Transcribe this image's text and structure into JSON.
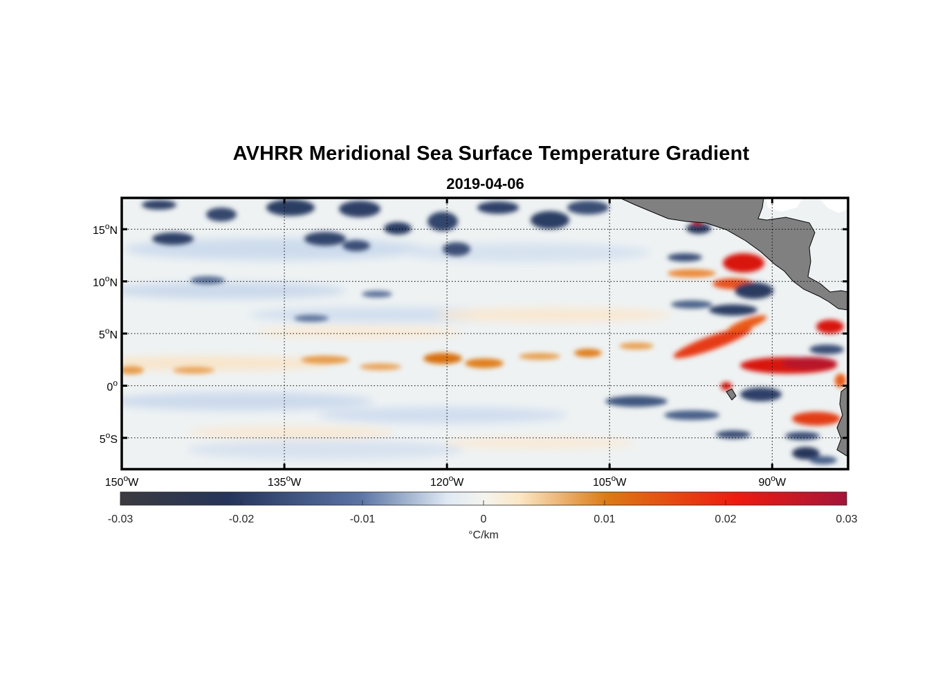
{
  "title": "AVHRR Meridional Sea Surface Temperature Gradient",
  "subtitle": "2019-04-06",
  "map": {
    "lon_range": [
      -150,
      -83
    ],
    "lat_range": [
      -8,
      18
    ],
    "lon_ticks": [
      {
        "value": -150,
        "label": "150",
        "deg": "o",
        "hemi": "W"
      },
      {
        "value": -135,
        "label": "135",
        "deg": "o",
        "hemi": "W"
      },
      {
        "value": -120,
        "label": "120",
        "deg": "o",
        "hemi": "W"
      },
      {
        "value": -105,
        "label": "105",
        "deg": "o",
        "hemi": "W"
      },
      {
        "value": -90,
        "label": "90",
        "deg": "o",
        "hemi": "W"
      }
    ],
    "lat_ticks": [
      {
        "value": 15,
        "label": "15",
        "deg": "o",
        "hemi": "N"
      },
      {
        "value": 10,
        "label": "10",
        "deg": "o",
        "hemi": "N"
      },
      {
        "value": 5,
        "label": "5",
        "deg": "o",
        "hemi": "N"
      },
      {
        "value": 0,
        "label": "0",
        "deg": "o",
        "hemi": ""
      },
      {
        "value": -5,
        "label": "5",
        "deg": "o",
        "hemi": "S"
      }
    ],
    "grid": true,
    "land_color": "#808080"
  },
  "colorbar": {
    "range": [
      -0.03,
      0.03
    ],
    "ticks": [
      {
        "value": -0.03,
        "label": "-0.03"
      },
      {
        "value": -0.02,
        "label": "-0.02"
      },
      {
        "value": -0.01,
        "label": "-0.01"
      },
      {
        "value": 0,
        "label": "0"
      },
      {
        "value": 0.01,
        "label": "0.01"
      },
      {
        "value": 0.02,
        "label": "0.02"
      },
      {
        "value": 0.03,
        "label": "0.03"
      }
    ],
    "unit": "°C/km",
    "colors": [
      "#3b3b3f",
      "#25345a",
      "#5a74a4",
      "#dfe9f4",
      "#fbe7c5",
      "#db7a16",
      "#ee1a10",
      "#a3153a"
    ]
  }
}
